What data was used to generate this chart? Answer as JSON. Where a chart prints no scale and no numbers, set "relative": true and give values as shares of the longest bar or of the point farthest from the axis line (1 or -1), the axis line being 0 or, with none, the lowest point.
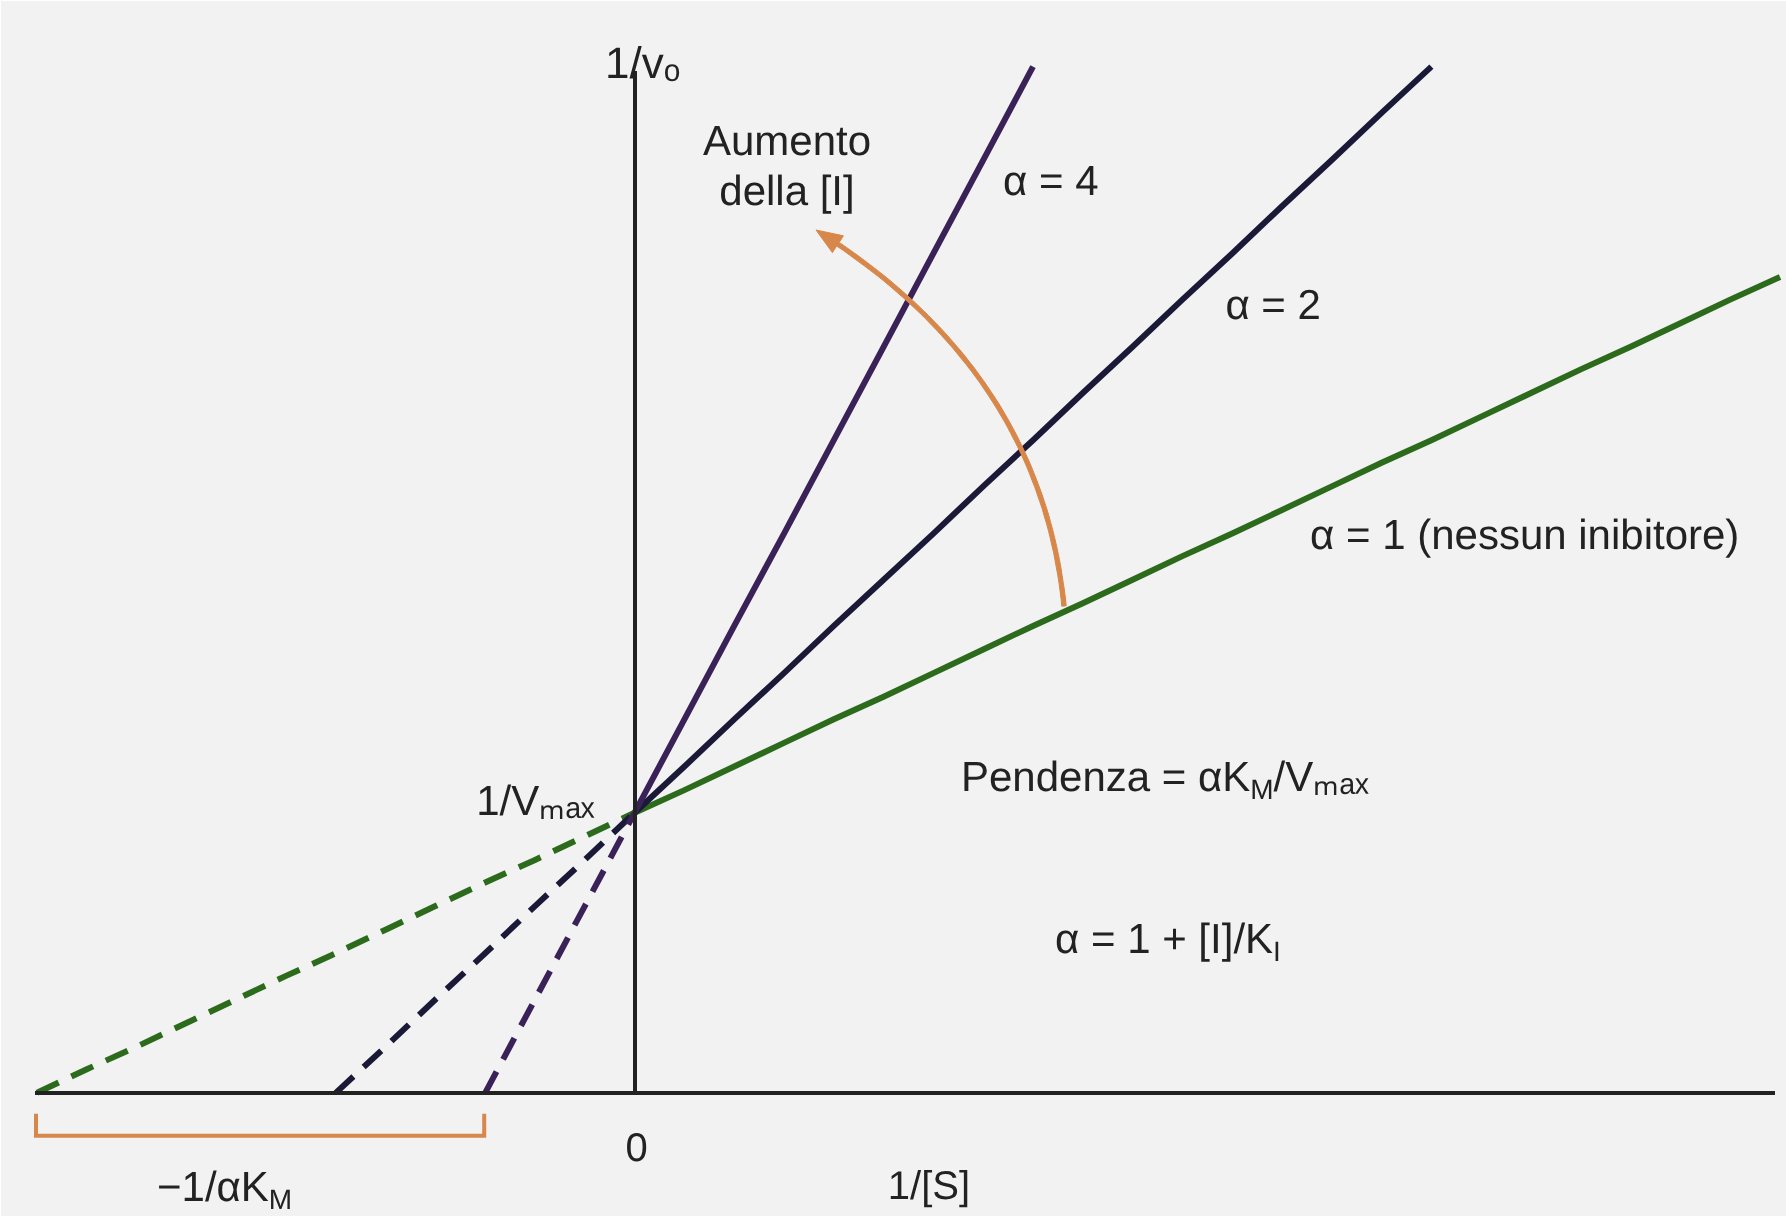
{
  "chart_data": {
    "type": "line",
    "relative": true,
    "xlabel": "1/[S]",
    "ylabel": "1/vₒ",
    "categories": [
      null,
      null,
      null,
      null,
      null,
      null,
      null,
      null,
      null,
      null,
      null,
      null,
      null,
      null,
      null,
      null,
      null,
      null,
      null,
      null,
      null,
      null,
      null,
      null,
      null,
      null,
      null,
      null,
      null,
      null,
      null,
      null,
      null,
      null,
      null,
      null
    ],
    "series": [
      {
        "name": "α = 1 (nessun inibitore)",
        "color": "#2c6a1c",
        "line_style": "solid",
        "values": [
          null,
          null,
          null,
          null,
          null,
          null,
          null,
          null,
          null,
          null,
          null,
          null,
          0.273,
          0.295,
          0.318,
          0.341,
          0.364,
          0.386,
          0.409,
          0.432,
          0.455,
          0.477,
          0.5,
          0.523,
          0.545,
          0.568,
          0.591,
          0.614,
          0.636,
          0.659,
          0.682,
          0.705,
          0.727,
          0.75,
          0.773,
          0.795
        ]
      },
      {
        "name": "α = 2",
        "color": "#1a1a38",
        "line_style": "solid",
        "values": [
          null,
          null,
          null,
          null,
          null,
          null,
          null,
          null,
          null,
          null,
          null,
          null,
          0.273,
          0.318,
          0.364,
          0.409,
          0.455,
          0.5,
          0.545,
          0.591,
          0.636,
          0.682,
          0.727,
          0.773,
          0.818,
          0.864,
          0.909,
          0.955,
          1.0,
          null,
          null,
          null,
          null,
          null,
          null,
          null
        ]
      },
      {
        "name": "α = 4",
        "color": "#3a2258",
        "line_style": "solid",
        "values": [
          null,
          null,
          null,
          null,
          null,
          null,
          null,
          null,
          null,
          null,
          null,
          null,
          0.273,
          0.364,
          0.455,
          0.545,
          0.636,
          0.727,
          0.818,
          0.909,
          1.0,
          null,
          null,
          null,
          null,
          null,
          null,
          null,
          null,
          null,
          null,
          null,
          null,
          null,
          null,
          null
        ]
      },
      {
        "color": "#2c6a1c",
        "line_style": "dashed",
        "values": [
          0,
          0.023,
          0.045,
          0.068,
          0.091,
          0.114,
          0.136,
          0.159,
          0.182,
          0.205,
          0.227,
          0.25,
          0.273,
          null,
          null,
          null,
          null,
          null,
          null,
          null,
          null,
          null,
          null,
          null,
          null,
          null,
          null,
          null,
          null,
          null,
          null,
          null,
          null,
          null,
          null,
          null
        ]
      },
      {
        "color": "#1a1a38",
        "line_style": "dashed",
        "values": [
          null,
          null,
          null,
          null,
          null,
          null,
          0,
          0.045,
          0.091,
          0.136,
          0.182,
          0.227,
          0.273,
          null,
          null,
          null,
          null,
          null,
          null,
          null,
          null,
          null,
          null,
          null,
          null,
          null,
          null,
          null,
          null,
          null,
          null,
          null,
          null,
          null,
          null,
          null
        ]
      },
      {
        "color": "#3a2258",
        "line_style": "dashed",
        "values": [
          null,
          null,
          null,
          null,
          null,
          null,
          null,
          null,
          null,
          0,
          0.091,
          0.182,
          0.273,
          null,
          null,
          null,
          null,
          null,
          null,
          null,
          null,
          null,
          null,
          null,
          null,
          null,
          null,
          null,
          null,
          null,
          null,
          null,
          null,
          null,
          null,
          null
        ]
      }
    ],
    "annotations": [
      "Aumento della [I]",
      "1/Vₘₐₓ",
      "Pendenza = αK$_{M}$/Vₘₐₓ",
      "α = 1 + [I]/K$_{I}$",
      "−1/αK$_{M}$",
      "0"
    ]
  }
}
